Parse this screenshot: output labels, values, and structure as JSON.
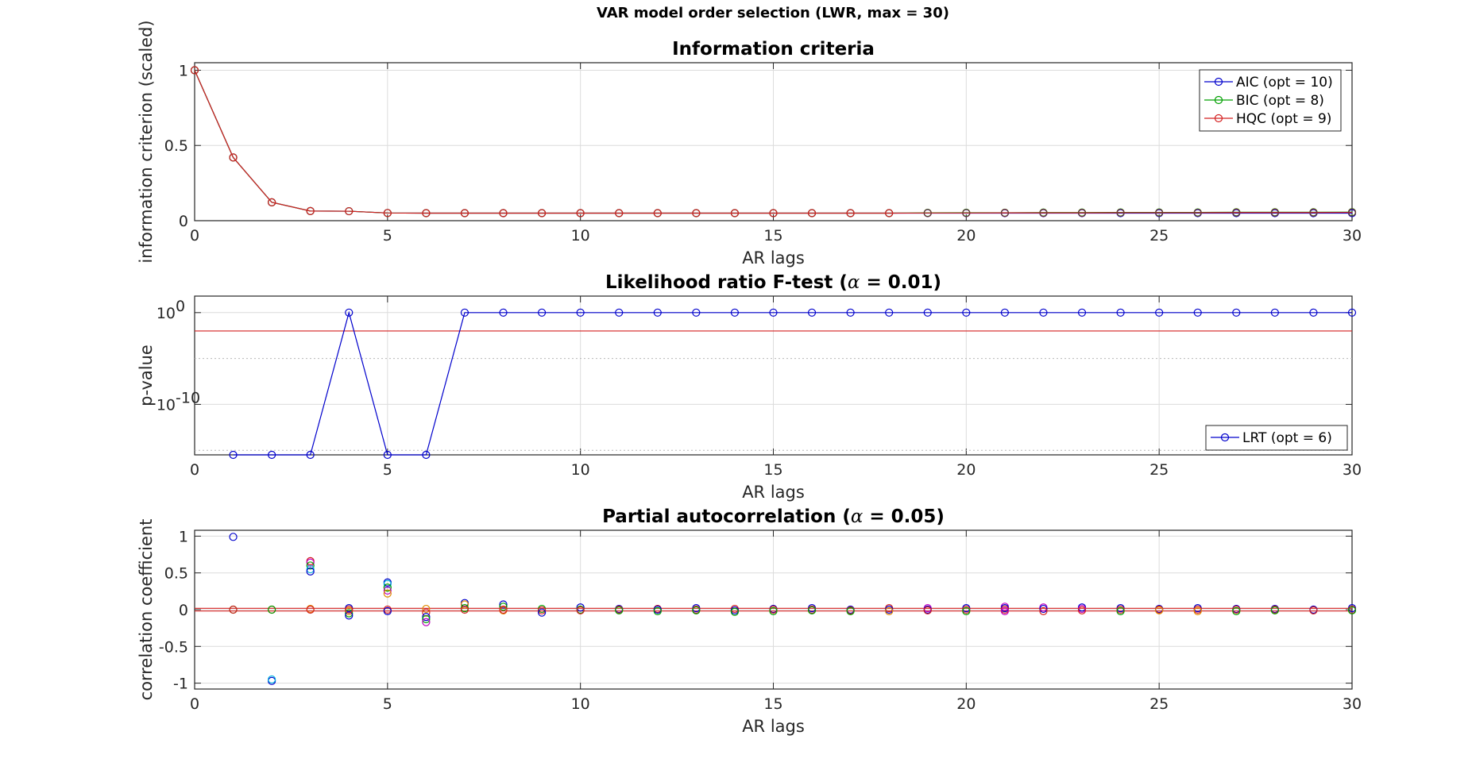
{
  "figure": {
    "suptitle": "VAR model order selection (LWR, max = 30)"
  },
  "colors": {
    "blue": "#0000cc",
    "green": "#00a000",
    "red": "#d42020",
    "orange": "#e08a00",
    "cyan": "#00b0e0",
    "magenta": "#c000c0",
    "axis": "#262626",
    "grid": "#dcdcdc",
    "dotted": "#b8b8b8"
  },
  "chart_data": [
    {
      "type": "line",
      "title": "Information criteria",
      "xlabel": "AR lags",
      "ylabel": "information criterion (scaled)",
      "xlim": [
        0,
        30
      ],
      "ylim": [
        0,
        1.05
      ],
      "xticks": [
        0,
        5,
        10,
        15,
        20,
        25,
        30
      ],
      "yticks": [
        0,
        0.5,
        1
      ],
      "ytick_labels": [
        "0",
        "0.5",
        "1"
      ],
      "grid": true,
      "legend_position": "top-right",
      "x": [
        0,
        1,
        2,
        3,
        4,
        5,
        6,
        7,
        8,
        9,
        10,
        11,
        12,
        13,
        14,
        15,
        16,
        17,
        18,
        19,
        20,
        21,
        22,
        23,
        24,
        25,
        26,
        27,
        28,
        29,
        30
      ],
      "series": [
        {
          "name": "AIC (opt = 10)",
          "color": "blue",
          "values": [
            1.0,
            0.42,
            0.122,
            0.064,
            0.063,
            0.051,
            0.05,
            0.05,
            0.05,
            0.05,
            0.05,
            0.05,
            0.05,
            0.05,
            0.05,
            0.05,
            0.05,
            0.05,
            0.05,
            0.05,
            0.05,
            0.05,
            0.05,
            0.05,
            0.05,
            0.05,
            0.05,
            0.05,
            0.05,
            0.05,
            0.05
          ]
        },
        {
          "name": "BIC (opt = 8)",
          "color": "green",
          "values": [
            1.0,
            0.42,
            0.122,
            0.064,
            0.063,
            0.051,
            0.05,
            0.05,
            0.05,
            0.05,
            0.05,
            0.05,
            0.05,
            0.05,
            0.05,
            0.05,
            0.05,
            0.05,
            0.05,
            0.052,
            0.053,
            0.053,
            0.054,
            0.054,
            0.055,
            0.055,
            0.055,
            0.056,
            0.056,
            0.056,
            0.057
          ]
        },
        {
          "name": "HQC (opt = 9)",
          "color": "red",
          "values": [
            1.0,
            0.42,
            0.122,
            0.064,
            0.063,
            0.051,
            0.05,
            0.05,
            0.05,
            0.05,
            0.05,
            0.05,
            0.05,
            0.05,
            0.05,
            0.05,
            0.05,
            0.05,
            0.05,
            0.051,
            0.051,
            0.052,
            0.052,
            0.052,
            0.053,
            0.053,
            0.053,
            0.054,
            0.054,
            0.054,
            0.055
          ]
        }
      ]
    },
    {
      "type": "line",
      "title_prefix": "Likelihood ratio F-test (",
      "title_symbol": "α",
      "title_suffix": " = 0.01)",
      "xlabel": "AR lags",
      "ylabel": "p-value",
      "yscale": "log",
      "xlim": [
        0,
        30
      ],
      "ylim_log10": [
        -15.5,
        1.8
      ],
      "xticks": [
        0,
        5,
        10,
        15,
        20,
        25,
        30
      ],
      "yticks_log10": [
        0,
        -10
      ],
      "ytick_base": "10",
      "ytick_exponents": [
        "0",
        "-10"
      ],
      "grid": true,
      "significance_level": 0.01,
      "legend_position": "bottom-right",
      "x": [
        1,
        2,
        3,
        4,
        5,
        6,
        7,
        8,
        9,
        10,
        11,
        12,
        13,
        14,
        15,
        16,
        17,
        18,
        19,
        20,
        21,
        22,
        23,
        24,
        25,
        26,
        27,
        28,
        29,
        30
      ],
      "series": [
        {
          "name": "LRT (opt = 6)",
          "color": "blue",
          "log10_values": [
            -15.5,
            -15.5,
            -15.5,
            0,
            -15.5,
            -15.5,
            0,
            0,
            0,
            0,
            0,
            0,
            0,
            0,
            0,
            0,
            0,
            0,
            0,
            0,
            0,
            0,
            0,
            0,
            0,
            0,
            0,
            0,
            0,
            0
          ]
        }
      ]
    },
    {
      "type": "scatter",
      "title_prefix": "Partial autocorrelation (",
      "title_symbol": "α",
      "title_suffix": " = 0.05)",
      "xlabel": "AR lags",
      "ylabel": "correlation coefficient",
      "xlim": [
        0,
        30
      ],
      "ylim": [
        -1.08,
        1.08
      ],
      "xticks": [
        0,
        5,
        10,
        15,
        20,
        25,
        30
      ],
      "yticks": [
        -1,
        -0.5,
        0,
        0.5,
        1
      ],
      "ytick_labels": [
        "-1",
        "-0.5",
        "0",
        "0.5",
        "1"
      ],
      "grid": true,
      "confidence_bounds": [
        0.018,
        -0.018
      ],
      "points": [
        [
          1,
          0.99,
          "blue"
        ],
        [
          1,
          0.0,
          "green"
        ],
        [
          1,
          0.0,
          "red"
        ],
        [
          2,
          -0.97,
          "blue"
        ],
        [
          2,
          -0.95,
          "cyan"
        ],
        [
          2,
          0.0,
          "red"
        ],
        [
          2,
          0.0,
          "green"
        ],
        [
          3,
          0.66,
          "red"
        ],
        [
          3,
          0.64,
          "magenta"
        ],
        [
          3,
          0.6,
          "green"
        ],
        [
          3,
          0.55,
          "cyan"
        ],
        [
          3,
          0.52,
          "blue"
        ],
        [
          3,
          0.01,
          "orange"
        ],
        [
          3,
          0.0,
          "red"
        ],
        [
          4,
          0.02,
          "blue"
        ],
        [
          4,
          -0.02,
          "orange"
        ],
        [
          4,
          -0.05,
          "green"
        ],
        [
          4,
          -0.08,
          "blue"
        ],
        [
          4,
          0.0,
          "red"
        ],
        [
          5,
          0.37,
          "blue"
        ],
        [
          5,
          0.35,
          "cyan"
        ],
        [
          5,
          0.3,
          "green"
        ],
        [
          5,
          0.26,
          "magenta"
        ],
        [
          5,
          0.22,
          "orange"
        ],
        [
          5,
          0.0,
          "red"
        ],
        [
          5,
          -0.02,
          "blue"
        ],
        [
          6,
          0.01,
          "orange"
        ],
        [
          6,
          -0.04,
          "red"
        ],
        [
          6,
          -0.1,
          "blue"
        ],
        [
          6,
          -0.13,
          "green"
        ],
        [
          6,
          -0.17,
          "magenta"
        ],
        [
          7,
          0.09,
          "blue"
        ],
        [
          7,
          0.07,
          "orange"
        ],
        [
          7,
          0.02,
          "green"
        ],
        [
          7,
          0.0,
          "red"
        ],
        [
          8,
          0.07,
          "blue"
        ],
        [
          8,
          0.04,
          "green"
        ],
        [
          8,
          -0.01,
          "orange"
        ],
        [
          8,
          0.0,
          "red"
        ],
        [
          9,
          0.01,
          "green"
        ],
        [
          9,
          -0.01,
          "red"
        ],
        [
          9,
          -0.04,
          "blue"
        ],
        [
          10,
          0.03,
          "blue"
        ],
        [
          10,
          0.0,
          "green"
        ],
        [
          10,
          -0.01,
          "red"
        ],
        [
          11,
          0.01,
          "blue"
        ],
        [
          11,
          0.0,
          "red"
        ],
        [
          11,
          -0.01,
          "green"
        ],
        [
          12,
          0.01,
          "red"
        ],
        [
          12,
          0.0,
          "blue"
        ],
        [
          12,
          -0.02,
          "green"
        ],
        [
          13,
          0.02,
          "blue"
        ],
        [
          13,
          0.0,
          "red"
        ],
        [
          13,
          -0.01,
          "green"
        ],
        [
          14,
          0.01,
          "red"
        ],
        [
          14,
          -0.01,
          "blue"
        ],
        [
          14,
          -0.03,
          "green"
        ],
        [
          15,
          0.01,
          "blue"
        ],
        [
          15,
          0.0,
          "red"
        ],
        [
          15,
          -0.02,
          "green"
        ],
        [
          16,
          0.02,
          "blue"
        ],
        [
          16,
          0.0,
          "red"
        ],
        [
          16,
          -0.01,
          "green"
        ],
        [
          17,
          0.0,
          "blue"
        ],
        [
          17,
          -0.01,
          "red"
        ],
        [
          17,
          -0.02,
          "green"
        ],
        [
          18,
          0.02,
          "red"
        ],
        [
          18,
          0.0,
          "blue"
        ],
        [
          18,
          -0.02,
          "orange"
        ],
        [
          19,
          0.02,
          "magenta"
        ],
        [
          19,
          0.0,
          "blue"
        ],
        [
          19,
          -0.01,
          "red"
        ],
        [
          20,
          0.02,
          "blue"
        ],
        [
          20,
          0.0,
          "red"
        ],
        [
          20,
          -0.02,
          "green"
        ],
        [
          21,
          0.04,
          "magenta"
        ],
        [
          21,
          0.02,
          "blue"
        ],
        [
          21,
          0.0,
          "red"
        ],
        [
          21,
          -0.02,
          "magenta"
        ],
        [
          22,
          0.03,
          "magenta"
        ],
        [
          22,
          0.01,
          "blue"
        ],
        [
          22,
          -0.02,
          "red"
        ],
        [
          23,
          0.03,
          "blue"
        ],
        [
          23,
          0.01,
          "magenta"
        ],
        [
          23,
          -0.01,
          "red"
        ],
        [
          24,
          0.02,
          "blue"
        ],
        [
          24,
          0.0,
          "red"
        ],
        [
          24,
          -0.02,
          "green"
        ],
        [
          25,
          0.01,
          "blue"
        ],
        [
          25,
          0.0,
          "red"
        ],
        [
          25,
          -0.01,
          "orange"
        ],
        [
          26,
          0.02,
          "blue"
        ],
        [
          26,
          0.0,
          "red"
        ],
        [
          26,
          -0.02,
          "orange"
        ],
        [
          27,
          0.01,
          "blue"
        ],
        [
          27,
          0.0,
          "red"
        ],
        [
          27,
          -0.02,
          "green"
        ],
        [
          28,
          0.01,
          "blue"
        ],
        [
          28,
          0.0,
          "red"
        ],
        [
          28,
          -0.01,
          "green"
        ],
        [
          29,
          0.0,
          "blue"
        ],
        [
          29,
          -0.01,
          "red"
        ],
        [
          30,
          0.02,
          "blue"
        ],
        [
          30,
          0.0,
          "red"
        ],
        [
          30,
          -0.01,
          "green"
        ]
      ]
    }
  ]
}
